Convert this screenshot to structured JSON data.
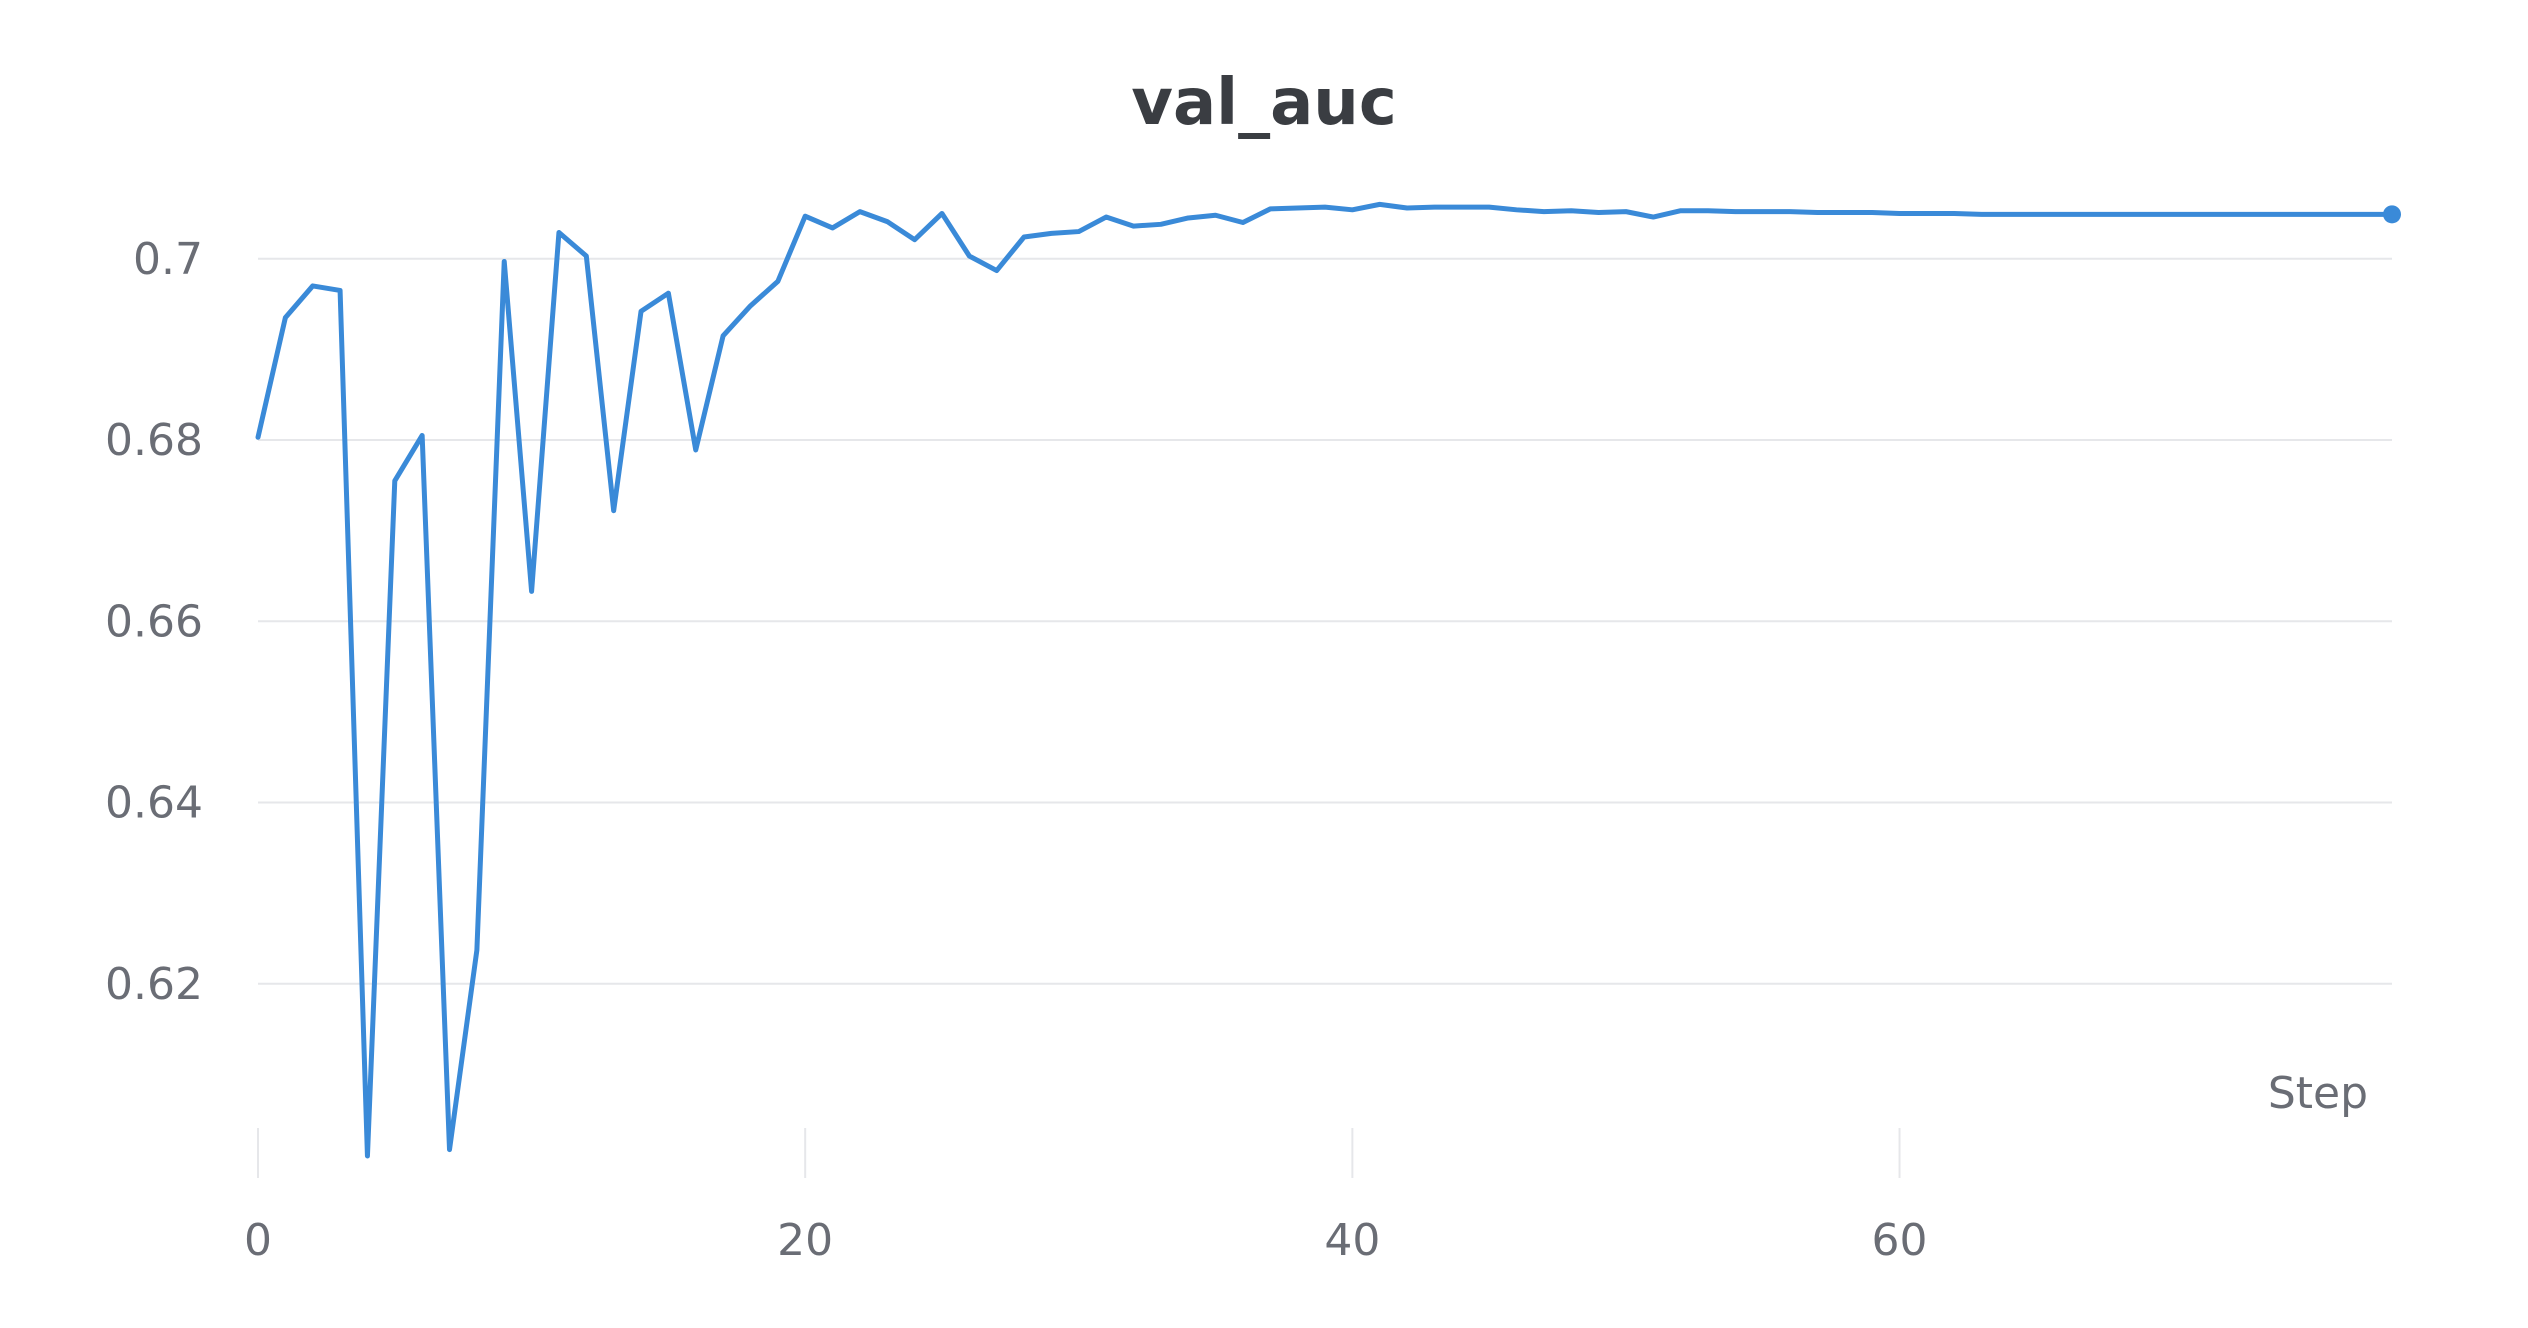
{
  "chart_data": {
    "type": "line",
    "title": "val_auc",
    "xlabel": "Step",
    "ylabel": "",
    "xlim": [
      0,
      78
    ],
    "ylim": [
      0.6,
      0.712
    ],
    "x_ticks": [
      0,
      20,
      40,
      60
    ],
    "x_tick_labels": [
      "0",
      "20",
      "40",
      "60"
    ],
    "y_ticks": [
      0.62,
      0.64,
      0.66,
      0.68,
      0.7
    ],
    "y_tick_labels": [
      "0.62",
      "0.64",
      "0.66",
      "0.68",
      "0.7"
    ],
    "grid": "horizontal",
    "legend": "none",
    "series": [
      {
        "color": "#3a8ad8",
        "marker_last_point": true,
        "x": [
          0,
          1,
          2,
          3,
          4,
          5,
          6,
          7,
          8,
          9,
          10,
          11,
          12,
          13,
          14,
          15,
          16,
          17,
          18,
          19,
          20,
          21,
          22,
          23,
          24,
          25,
          26,
          27,
          28,
          29,
          30,
          31,
          32,
          33,
          34,
          35,
          36,
          37,
          38,
          39,
          40,
          41,
          42,
          43,
          44,
          45,
          46,
          47,
          48,
          49,
          50,
          51,
          52,
          53,
          54,
          55,
          56,
          57,
          58,
          59,
          60,
          61,
          62,
          63,
          64,
          65,
          66,
          67,
          68,
          69,
          70,
          71,
          72,
          73,
          74,
          75,
          76,
          77,
          78
        ],
        "y": [
          0.6803,
          0.6935,
          0.697,
          0.6965,
          0.601,
          0.6755,
          0.6805,
          0.6017,
          0.6237,
          0.6997,
          0.6633,
          0.7029,
          0.7003,
          0.6722,
          0.6942,
          0.6962,
          0.6789,
          0.6915,
          0.6948,
          0.6975,
          0.7047,
          0.7034,
          0.7052,
          0.7041,
          0.7021,
          0.705,
          0.7003,
          0.6987,
          0.7024,
          0.7028,
          0.703,
          0.7046,
          0.7036,
          0.7038,
          0.7045,
          0.7048,
          0.704,
          0.7055,
          0.7056,
          0.7057,
          0.7054,
          0.706,
          0.7056,
          0.7057,
          0.7057,
          0.7057,
          0.7054,
          0.7052,
          0.7053,
          0.7051,
          0.7052,
          0.7046,
          0.7053,
          0.7053,
          0.7052,
          0.7052,
          0.7052,
          0.7051,
          0.7051,
          0.7051,
          0.705,
          0.705,
          0.705,
          0.7049,
          0.7049,
          0.7049,
          0.7049,
          0.7049,
          0.7049,
          0.7049,
          0.7049,
          0.7049,
          0.7049,
          0.7049,
          0.7049,
          0.7049,
          0.7049,
          0.7049,
          0.7049
        ]
      }
    ]
  }
}
